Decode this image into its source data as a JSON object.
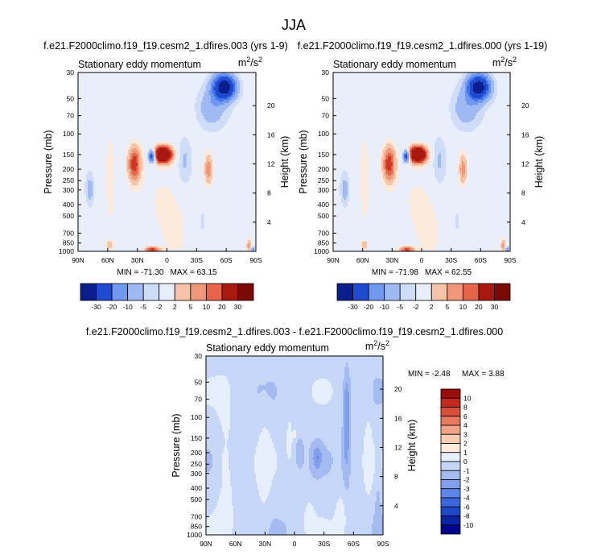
{
  "figure_title": "JJA",
  "chart_data": [
    {
      "type": "heatmap",
      "title": "f.e21.F2000climo.f19_f19.cesm2_1.dfires.003 (yrs 1-9)",
      "subtitle": "Stationary eddy momentum",
      "units_base": "m",
      "units_sup1": "2",
      "units_mid": "/s",
      "units_sup2": "2",
      "ylabel": "Pressure (mb)",
      "ylabel_right": "Height (km)",
      "x_ticks": [
        "90N",
        "60N",
        "30N",
        "0",
        "30S",
        "60S",
        "90S"
      ],
      "x_values": [
        90,
        60,
        30,
        0,
        -30,
        -60,
        -90
      ],
      "y_ticks": [
        "30",
        "50",
        "70",
        "100",
        "150",
        "200",
        "250",
        "300",
        "400",
        "500",
        "700",
        "850",
        "1000"
      ],
      "y_values": [
        30,
        50,
        70,
        100,
        150,
        200,
        250,
        300,
        400,
        500,
        700,
        850,
        1000
      ],
      "height_ticks": [
        "20",
        "16",
        "12",
        "8",
        "4"
      ],
      "height_values": [
        20,
        16,
        12,
        8,
        4
      ],
      "min_label": "MIN = -71.30",
      "max_label": "MAX = 63.15",
      "colorbar_labels": [
        "-30",
        "-20",
        "-10",
        "-5",
        "-2",
        "2",
        "5",
        "10",
        "20",
        "30"
      ],
      "levels": [
        -40,
        -30,
        -20,
        -15,
        -10,
        -5,
        -2,
        2,
        5,
        10,
        15,
        20,
        30,
        40
      ],
      "features": [
        {
          "lat": 4,
          "p": 150,
          "lat_w": 8,
          "lp_w": 0.14,
          "amp": 66
        },
        {
          "lat": 15,
          "p": 155,
          "lat_w": 3.5,
          "lp_w": 0.12,
          "amp": -32
        },
        {
          "lat": 33,
          "p": 180,
          "lat_w": 6,
          "lp_w": 0.32,
          "amp": 24
        },
        {
          "lat": -58,
          "p": 40,
          "lat_w": 11,
          "lp_w": 0.24,
          "amp": -38
        },
        {
          "lat": -45,
          "p": 60,
          "lat_w": 15,
          "lp_w": 0.4,
          "amp": -9
        },
        {
          "lat": -42,
          "p": 200,
          "lat_w": 4,
          "lp_w": 0.3,
          "amp": 14
        },
        {
          "lat": -18,
          "p": 170,
          "lat_w": 7,
          "lp_w": 0.5,
          "amp": -6
        },
        {
          "lat": 78,
          "p": 300,
          "lat_w": 4,
          "lp_w": 0.3,
          "amp": -7
        },
        {
          "lat": 58,
          "p": 240,
          "lat_w": 5,
          "lp_w": 0.9,
          "amp": 4
        },
        {
          "lat": 15,
          "p": 970,
          "lat_w": 7,
          "lp_w": 0.06,
          "amp": 22
        },
        {
          "lat": 58,
          "p": 880,
          "lat_w": 4,
          "lp_w": 0.08,
          "amp": 8
        },
        {
          "lat": -83,
          "p": 900,
          "lat_w": 2.5,
          "lp_w": 0.15,
          "amp": 12
        },
        {
          "lat": -87,
          "p": 980,
          "lat_w": 2,
          "lp_w": 0.06,
          "amp": -14
        },
        {
          "lat": -2,
          "p": 500,
          "lat_w": 28,
          "lp_w": 1.2,
          "amp": 2.5
        },
        {
          "lat": -35,
          "p": 600,
          "lat_w": 10,
          "lp_w": 0.6,
          "amp": -3
        }
      ]
    },
    {
      "type": "heatmap",
      "title": "f.e21.F2000climo.f19_f19.cesm2_1.dfires.000 (yrs 1-19)",
      "subtitle": "Stationary eddy momentum",
      "units_base": "m",
      "units_sup1": "2",
      "units_mid": "/s",
      "units_sup2": "2",
      "ylabel": "Pressure (mb)",
      "ylabel_right": "Height (km)",
      "x_ticks": [
        "90N",
        "60N",
        "30N",
        "0",
        "30S",
        "60S",
        "90S"
      ],
      "x_values": [
        90,
        60,
        30,
        0,
        -30,
        -60,
        -90
      ],
      "y_ticks": [
        "30",
        "50",
        "70",
        "100",
        "150",
        "200",
        "250",
        "300",
        "400",
        "500",
        "700",
        "850",
        "1000"
      ],
      "y_values": [
        30,
        50,
        70,
        100,
        150,
        200,
        250,
        300,
        400,
        500,
        700,
        850,
        1000
      ],
      "height_ticks": [
        "20",
        "16",
        "12",
        "8",
        "4"
      ],
      "height_values": [
        20,
        16,
        12,
        8,
        4
      ],
      "min_label": "MIN = -71.98",
      "max_label": "MAX = 62.55",
      "colorbar_labels": [
        "-30",
        "-20",
        "-10",
        "-5",
        "-2",
        "2",
        "5",
        "10",
        "20",
        "30"
      ],
      "levels": [
        -40,
        -30,
        -20,
        -15,
        -10,
        -5,
        -2,
        2,
        5,
        10,
        15,
        20,
        30,
        40
      ],
      "features": [
        {
          "lat": 4,
          "p": 150,
          "lat_w": 8,
          "lp_w": 0.14,
          "amp": 64
        },
        {
          "lat": 15,
          "p": 155,
          "lat_w": 3.5,
          "lp_w": 0.12,
          "amp": -31
        },
        {
          "lat": 33,
          "p": 180,
          "lat_w": 6,
          "lp_w": 0.32,
          "amp": 24
        },
        {
          "lat": -58,
          "p": 40,
          "lat_w": 11,
          "lp_w": 0.24,
          "amp": -37
        },
        {
          "lat": -45,
          "p": 60,
          "lat_w": 15,
          "lp_w": 0.4,
          "amp": -9
        },
        {
          "lat": -42,
          "p": 200,
          "lat_w": 4,
          "lp_w": 0.3,
          "amp": 13
        },
        {
          "lat": -18,
          "p": 170,
          "lat_w": 7,
          "lp_w": 0.5,
          "amp": -6
        },
        {
          "lat": 78,
          "p": 300,
          "lat_w": 4,
          "lp_w": 0.3,
          "amp": -7
        },
        {
          "lat": 58,
          "p": 240,
          "lat_w": 5,
          "lp_w": 0.9,
          "amp": 4
        },
        {
          "lat": 15,
          "p": 970,
          "lat_w": 7,
          "lp_w": 0.06,
          "amp": 21
        },
        {
          "lat": 58,
          "p": 880,
          "lat_w": 4,
          "lp_w": 0.08,
          "amp": 8
        },
        {
          "lat": -83,
          "p": 900,
          "lat_w": 2.5,
          "lp_w": 0.15,
          "amp": 12
        },
        {
          "lat": -87,
          "p": 980,
          "lat_w": 2,
          "lp_w": 0.06,
          "amp": -14
        },
        {
          "lat": -2,
          "p": 500,
          "lat_w": 28,
          "lp_w": 1.2,
          "amp": 2.5
        },
        {
          "lat": -35,
          "p": 600,
          "lat_w": 10,
          "lp_w": 0.6,
          "amp": -3
        }
      ]
    },
    {
      "type": "heatmap",
      "title": "f.e21.F2000climo.f19_f19.cesm2_1.dfires.003 - f.e21.F2000climo.f19_f19.cesm2_1.dfires.000",
      "subtitle": "Stationary eddy momentum",
      "units_base": "m",
      "units_sup1": "2",
      "units_mid": "/s",
      "units_sup2": "2",
      "ylabel": "Pressure (mb)",
      "ylabel_right": "Height (km)",
      "x_ticks": [
        "90N",
        "60N",
        "30N",
        "0",
        "30S",
        "60S",
        "90S"
      ],
      "x_values": [
        90,
        60,
        30,
        0,
        -30,
        -60,
        -90
      ],
      "y_ticks": [
        "30",
        "50",
        "70",
        "100",
        "150",
        "200",
        "250",
        "300",
        "400",
        "500",
        "700",
        "850",
        "1000"
      ],
      "y_values": [
        30,
        50,
        70,
        100,
        150,
        200,
        250,
        300,
        400,
        500,
        700,
        850,
        1000
      ],
      "height_ticks": [
        "20",
        "16",
        "12",
        "8",
        "4"
      ],
      "height_values": [
        20,
        16,
        12,
        8,
        4
      ],
      "min_label": "MIN =  -2.48",
      "max_label": "MAX =  3.88",
      "colorbar_labels": [
        "10",
        "8",
        "6",
        "4",
        "3",
        "2",
        "1",
        "0",
        "-1",
        "-2",
        "-3",
        "-4",
        "-6",
        "-8",
        "-10"
      ],
      "levels": [
        -12,
        -10,
        -8,
        -6,
        -4,
        -3,
        -2,
        -1,
        0,
        1,
        2,
        3,
        4,
        6,
        8,
        10,
        12
      ],
      "background": -0.5,
      "features": [
        {
          "lat": 70,
          "p": 300,
          "lat_w": 9,
          "lp_w": 1.5,
          "amp": 0.9
        },
        {
          "lat": 71,
          "p": 250,
          "lat_w": 2.5,
          "lp_w": 0.2,
          "amp": 1.2
        },
        {
          "lat": 30,
          "p": 250,
          "lat_w": 6,
          "lp_w": 1.0,
          "amp": 0.8
        },
        {
          "lat": 5,
          "p": 150,
          "lat_w": 3,
          "lp_w": 0.4,
          "amp": 1.0
        },
        {
          "lat": 0,
          "p": 140,
          "lat_w": 1.2,
          "lp_w": 0.06,
          "amp": 3.5
        },
        {
          "lat": -53,
          "p": 130,
          "lat_w": 4,
          "lp_w": 1.1,
          "amp": -2.0
        },
        {
          "lat": -53,
          "p": 60,
          "lat_w": 3,
          "lp_w": 0.35,
          "amp": -0.8
        },
        {
          "lat": -23,
          "p": 220,
          "lat_w": 5,
          "lp_w": 0.25,
          "amp": -2.0
        },
        {
          "lat": -5,
          "p": 200,
          "lat_w": 4,
          "lp_w": 0.3,
          "amp": -1.0
        },
        {
          "lat": -48,
          "p": 650,
          "lat_w": 6,
          "lp_w": 0.5,
          "amp": 0.8
        },
        {
          "lat": -15,
          "p": 700,
          "lat_w": 5,
          "lp_w": 0.4,
          "amp": 0.6
        },
        {
          "lat": -75,
          "p": 200,
          "lat_w": 4,
          "lp_w": 1.2,
          "amp": 0.8
        },
        {
          "lat": -85,
          "p": 500,
          "lat_w": 3,
          "lp_w": 0.8,
          "amp": -0.7
        },
        {
          "lat": 35,
          "p": 600,
          "lat_w": 8,
          "lp_w": 0.6,
          "amp": 0.3
        },
        {
          "lat": 12,
          "p": 900,
          "lat_w": 10,
          "lp_w": 0.2,
          "amp": -0.3
        }
      ]
    }
  ],
  "colors": {
    "panel_palette": [
      "#0a1f8c",
      "#1f4bd1",
      "#3f74e8",
      "#6f98ef",
      "#9fbaf2",
      "#cfdcf7",
      "#e8eefa",
      "#fbe9dc",
      "#f6c3a8",
      "#f0977a",
      "#e5654a",
      "#cf3524",
      "#a81811",
      "#7a0a04"
    ],
    "diff_palette": [
      "#00008f",
      "#0a23a8",
      "#1f47c9",
      "#3a67de",
      "#5c86ea",
      "#819fec",
      "#a4baf0",
      "#c6d6f6",
      "#e7eefb",
      "#fbe9dc",
      "#f6cdb3",
      "#f1a488",
      "#e87a5e",
      "#d9503a",
      "#c22a1c",
      "#9b0d0a"
    ]
  }
}
